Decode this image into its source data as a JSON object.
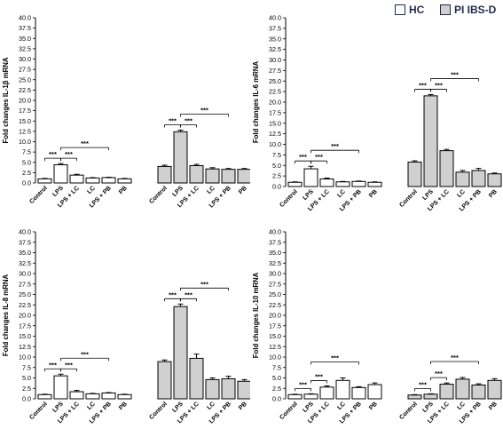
{
  "legend": {
    "items": [
      {
        "label": "HC",
        "color": "#ffffff"
      },
      {
        "label": "PI IBS-D",
        "color": "#d0d0d0"
      }
    ]
  },
  "colors": {
    "hc": "#ffffff",
    "pi": "#d0d0d0",
    "stroke": "#000000"
  },
  "chart_data": [
    {
      "type": "bar",
      "ylabel": "Fold changes IL-1β mRNA",
      "ylim": [
        0,
        40
      ],
      "yticks": [
        "0.0",
        "2.5",
        "5.0",
        "7.5",
        "10.0",
        "12.5",
        "15.0",
        "17.5",
        "20.0",
        "22.5",
        "25.0",
        "27.5",
        "30.0",
        "32.5",
        "35.0",
        "37.5",
        "40.0"
      ],
      "categories": [
        "Control",
        "LPS",
        "LPS + LC",
        "LC",
        "LPS + PB",
        "PB"
      ],
      "series": [
        {
          "name": "HC",
          "values": [
            1.0,
            4.4,
            1.9,
            1.2,
            1.3,
            1.0
          ],
          "errors": [
            0.1,
            0.3,
            0.2,
            0.1,
            0.1,
            0.1
          ]
        },
        {
          "name": "PI IBS-D",
          "values": [
            4.0,
            12.4,
            4.2,
            3.4,
            3.3,
            3.3
          ],
          "errors": [
            0.3,
            0.4,
            0.3,
            0.3,
            0.2,
            0.2
          ]
        }
      ],
      "significance": [
        {
          "series": "HC",
          "pairs": [
            {
              "from": 0,
              "to": 1,
              "label": "***"
            },
            {
              "from": 1,
              "to": 2,
              "label": "***"
            },
            {
              "from": 1,
              "to": 4,
              "label": "***"
            }
          ]
        },
        {
          "series": "PI IBS-D",
          "pairs": [
            {
              "from": 0,
              "to": 1,
              "label": "***"
            },
            {
              "from": 1,
              "to": 2,
              "label": "***"
            },
            {
              "from": 1,
              "to": 4,
              "label": "***"
            }
          ]
        }
      ]
    },
    {
      "type": "bar",
      "ylabel": "Fold changes IL-6 mRNA",
      "ylim": [
        0,
        40
      ],
      "yticks": [
        "0.0",
        "2.5",
        "5.0",
        "7.5",
        "10.0",
        "12.5",
        "15.0",
        "17.5",
        "20.0",
        "22.5",
        "25.0",
        "27.5",
        "30.0",
        "32.5",
        "35.0",
        "37.5",
        "40.0"
      ],
      "categories": [
        "Control",
        "LPS",
        "LPS + LC",
        "LC",
        "LPS + PB",
        "PB"
      ],
      "series": [
        {
          "name": "HC",
          "values": [
            1.0,
            4.2,
            1.8,
            1.1,
            1.2,
            1.0
          ],
          "errors": [
            0.1,
            0.6,
            0.2,
            0.1,
            0.1,
            0.1
          ]
        },
        {
          "name": "PI IBS-D",
          "values": [
            5.8,
            21.5,
            8.5,
            3.4,
            3.8,
            3.0
          ],
          "errors": [
            0.3,
            0.3,
            0.3,
            0.4,
            0.5,
            0.2
          ]
        }
      ],
      "significance": [
        {
          "series": "HC",
          "pairs": [
            {
              "from": 0,
              "to": 1,
              "label": "***"
            },
            {
              "from": 1,
              "to": 2,
              "label": "***"
            },
            {
              "from": 1,
              "to": 4,
              "label": "***"
            }
          ]
        },
        {
          "series": "PI IBS-D",
          "pairs": [
            {
              "from": 0,
              "to": 1,
              "label": "***"
            },
            {
              "from": 1,
              "to": 2,
              "label": "***"
            },
            {
              "from": 1,
              "to": 4,
              "label": "***"
            }
          ]
        }
      ]
    },
    {
      "type": "bar",
      "ylabel": "Fold changes IL-8 mRNA",
      "ylim": [
        0,
        40
      ],
      "yticks": [
        "0.0",
        "2.5",
        "5.0",
        "7.5",
        "10.0",
        "12.5",
        "15.0",
        "17.5",
        "20.0",
        "22.5",
        "25.0",
        "27.5",
        "30.0",
        "32.5",
        "35.0",
        "37.5",
        "40.0"
      ],
      "categories": [
        "Control",
        "LPS",
        "LPS + LC",
        "LC",
        "LPS + PB",
        "PB"
      ],
      "series": [
        {
          "name": "HC",
          "values": [
            1.0,
            5.5,
            1.7,
            1.2,
            1.4,
            1.0
          ],
          "errors": [
            0.1,
            0.4,
            0.3,
            0.1,
            0.1,
            0.1
          ]
        },
        {
          "name": "PI IBS-D",
          "values": [
            8.9,
            22.1,
            9.7,
            4.6,
            4.8,
            4.2
          ],
          "errors": [
            0.4,
            0.6,
            1.0,
            0.4,
            0.6,
            0.4
          ]
        }
      ],
      "significance": [
        {
          "series": "HC",
          "pairs": [
            {
              "from": 0,
              "to": 1,
              "label": "***"
            },
            {
              "from": 1,
              "to": 2,
              "label": "***"
            },
            {
              "from": 1,
              "to": 4,
              "label": "***"
            }
          ]
        },
        {
          "series": "PI IBS-D",
          "pairs": [
            {
              "from": 0,
              "to": 1,
              "label": "***"
            },
            {
              "from": 1,
              "to": 2,
              "label": "***"
            },
            {
              "from": 1,
              "to": 4,
              "label": "***"
            }
          ]
        }
      ]
    },
    {
      "type": "bar",
      "ylabel": "Fold changes IL-10 mRNA",
      "ylim": [
        0,
        40
      ],
      "yticks": [
        "0.0",
        "2.5",
        "5.0",
        "7.5",
        "10.0",
        "12.5",
        "15.0",
        "17.5",
        "20.0",
        "22.5",
        "25.0",
        "27.5",
        "30.0",
        "32.5",
        "35.0",
        "37.5",
        "40.0"
      ],
      "categories": [
        "Control",
        "LPS",
        "LPS + LC",
        "LC",
        "LPS + PB",
        "PB"
      ],
      "series": [
        {
          "name": "HC",
          "values": [
            1.0,
            1.1,
            2.8,
            4.4,
            2.7,
            3.4
          ],
          "errors": [
            0.1,
            0.1,
            0.3,
            0.6,
            0.2,
            0.4
          ]
        },
        {
          "name": "PI IBS-D",
          "values": [
            0.9,
            1.1,
            3.5,
            4.7,
            3.3,
            4.4
          ],
          "errors": [
            0.1,
            0.1,
            0.3,
            0.4,
            0.3,
            0.4
          ]
        }
      ],
      "significance": [
        {
          "series": "HC",
          "pairs": [
            {
              "from": 0,
              "to": 1,
              "label": "***"
            },
            {
              "from": 1,
              "to": 2,
              "label": "***"
            },
            {
              "from": 1,
              "to": 4,
              "label": "***"
            }
          ]
        },
        {
          "series": "PI IBS-D",
          "pairs": [
            {
              "from": 0,
              "to": 1,
              "label": "***"
            },
            {
              "from": 1,
              "to": 2,
              "label": "***"
            },
            {
              "from": 1,
              "to": 4,
              "label": "***"
            }
          ]
        }
      ]
    }
  ]
}
